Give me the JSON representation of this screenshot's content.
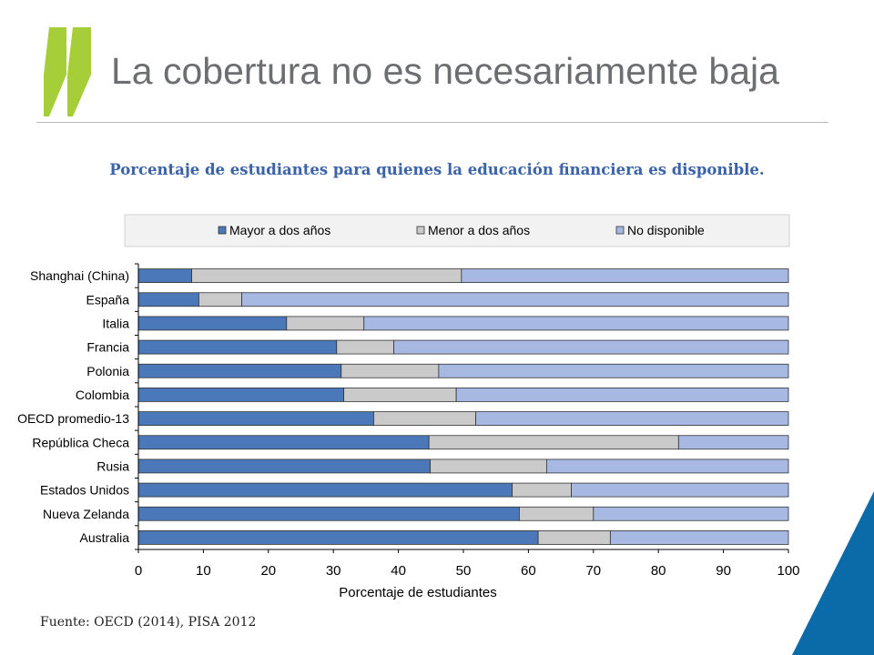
{
  "slide": {
    "title": "La cobertura no es necesariamente baja",
    "subtitle": "Porcentaje de estudiantes para quienes la educación financiera es disponible.",
    "source": "Fuente: OECD (2014), PISA 2012"
  },
  "colors": {
    "logo": "#a6ce39",
    "corner": "#0b6ba8",
    "series": [
      "#4a78b8",
      "#cacaca",
      "#a7b8e2"
    ]
  },
  "chart_data": {
    "type": "bar",
    "orientation": "horizontal",
    "stacked": true,
    "xlabel": "Porcentaje de estudiantes",
    "xlim": [
      0,
      100
    ],
    "xticks": [
      "0",
      "10",
      "20",
      "30",
      "40",
      "50",
      "60",
      "70",
      "80",
      "90",
      "100"
    ],
    "legend_position": "top",
    "categories": [
      "Shanghai (China)",
      "España",
      "Italia",
      "Francia",
      "Polonia",
      "Colombia",
      "OECD promedio-13",
      "República Checa",
      "Rusia",
      "Estados Unidos",
      "Nueva Zelanda",
      "Australia"
    ],
    "series": [
      {
        "name": "Mayor a dos años",
        "values": [
          8.2,
          9.3,
          22.8,
          30.5,
          31.2,
          31.6,
          36.2,
          44.7,
          44.9,
          57.5,
          58.6,
          61.5
        ]
      },
      {
        "name": "Menor a dos años",
        "values": [
          41.5,
          6.6,
          11.9,
          8.8,
          15.0,
          17.3,
          15.7,
          38.4,
          17.9,
          9.1,
          11.4,
          11.1
        ]
      },
      {
        "name": "No disponible",
        "values": [
          50.3,
          84.1,
          65.3,
          60.7,
          53.8,
          51.1,
          48.1,
          16.9,
          37.2,
          33.4,
          30.0,
          27.4
        ]
      }
    ]
  }
}
